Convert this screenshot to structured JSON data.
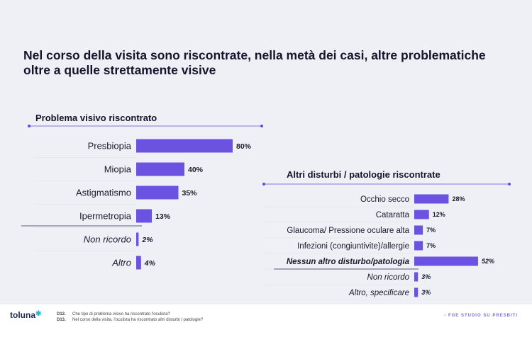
{
  "title": "Nel corso della visita sono riscontrate, nella metà dei casi, altre problematiche oltre a quelle strettamente visive",
  "colors": {
    "bar": "#6c52e0",
    "line": "#5a4fd6",
    "accent_text": "#14142b"
  },
  "chart_data": [
    {
      "type": "bar",
      "orientation": "horizontal",
      "title": "Problema visivo riscontrato",
      "categories": [
        "Presbiopia",
        "Miopia",
        "Astigmatismo",
        "Ipermetropia",
        "Non  ricordo",
        "Altro"
      ],
      "values": [
        80,
        40,
        35,
        13,
        2,
        4
      ],
      "value_labels": [
        "80%",
        "40%",
        "35%",
        "13%",
        "2%",
        "4%"
      ],
      "italic_categories": [
        "Non  ricordo",
        "Altro"
      ],
      "unit": "%"
    },
    {
      "type": "bar",
      "orientation": "horizontal",
      "title": "Altri disturbi / patologie riscontrate",
      "categories": [
        "Occhio secco",
        "Cataratta",
        "Glaucoma/ Pressione oculare alta",
        "Infezioni (congiuntivite)/allergie",
        "Nessun altro disturbo/patologia",
        "Non ricordo",
        "Altro, specificare"
      ],
      "values": [
        28,
        12,
        7,
        7,
        52,
        3,
        3
      ],
      "value_labels": [
        "28%",
        "12%",
        "7%",
        "7%",
        "52%",
        "3%",
        "3%"
      ],
      "italic_categories": [
        "Nessun altro disturbo/patologia",
        "Non ricordo",
        "Altro, specificare"
      ],
      "bold_categories": [
        "Nessun altro disturbo/patologia"
      ],
      "unit": "%"
    }
  ],
  "footer": {
    "brand": "toluna",
    "notes": [
      {
        "code": "D12.",
        "text": "Che tipo di problema visivo ha riscontrato l'oculista?"
      },
      {
        "code": "D13.",
        "text": "Nel corso della visita, l'oculista ha riscontrato altri disturbi / patologie?"
      }
    ],
    "study": "- FGE STUDIO SU PRESBITI"
  }
}
